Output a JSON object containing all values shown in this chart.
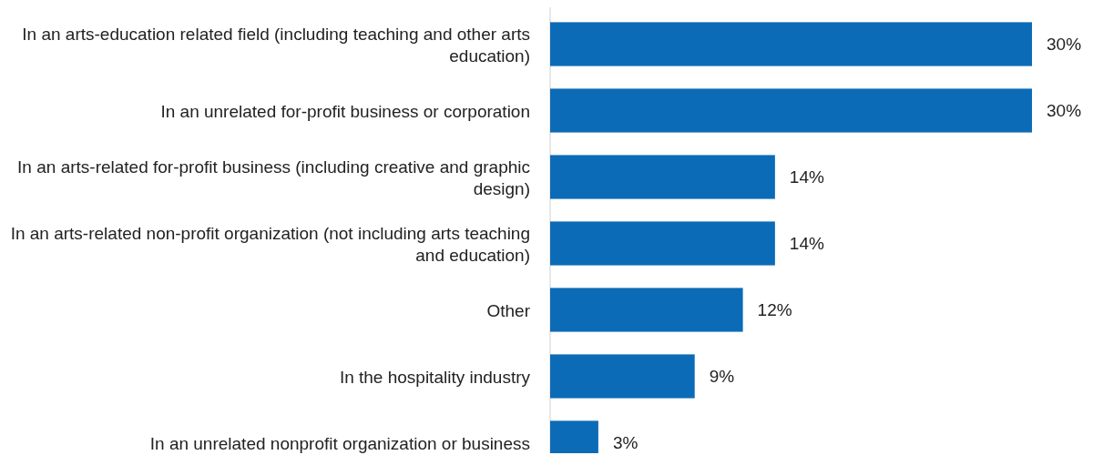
{
  "chart_data": {
    "type": "bar",
    "orientation": "horizontal",
    "categories": [
      "In an arts-education related field (including teaching and other arts education)",
      "In an unrelated for-profit business or corporation",
      "In an arts-related for-profit business (including creative and graphic design)",
      "In an arts-related non-profit organization (not including arts teaching and education)",
      "Other",
      "In the hospitality industry",
      "In an unrelated nonprofit organization or business"
    ],
    "values": [
      30,
      30,
      14,
      14,
      12,
      9,
      3
    ],
    "value_labels": [
      "30%",
      "30%",
      "14%",
      "14%",
      "12%",
      "9%",
      "3%"
    ],
    "color": "#0c6bb6"
  }
}
